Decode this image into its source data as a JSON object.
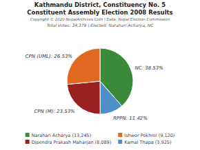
{
  "chart_data": {
    "type": "pie",
    "title": "Kathmandu District, Constituency No. 5",
    "subtitle": "Constituent Assembly Election 2008 Results",
    "annotations": [
      "Copyright © 2020 NepalArchives.Com | Data: Nepal Election Commission",
      "Total Votes: 34,379 | Elected: Narahari Acharya, NC"
    ],
    "categories": [
      "NC",
      "RPPN",
      "CPN (M)",
      "CPN (UML)"
    ],
    "values": [
      38.53,
      11.42,
      23.53,
      26.53
    ],
    "value_labels": [
      "NC: 38.53%",
      "RPPN: 11.42%",
      "CPN (M): 23.53%",
      "CPN (UML): 26.53%"
    ],
    "colors": [
      "#3a8a3a",
      "#4f8fc8",
      "#9b2020",
      "#e06820"
    ],
    "data_labels": true,
    "legend": "bottom",
    "legend_entries": [
      {
        "label": "Narahari Acharya (13,245)",
        "value": 13245,
        "color": "#3a8a3a"
      },
      {
        "label": "Dipendra Prakash Maharjan (8,089)",
        "value": 8089,
        "color": "#9b2020"
      },
      {
        "label": "Ishwor Pokhrel (9,120)",
        "value": 9120,
        "color": "#e06820"
      },
      {
        "label": "Kamal Thapa (3,925)",
        "value": 3925,
        "color": "#4f8fc8"
      }
    ]
  }
}
